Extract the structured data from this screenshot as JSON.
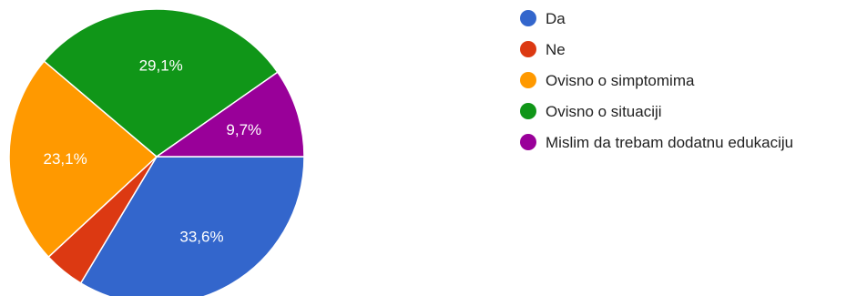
{
  "chart_data": {
    "type": "pie",
    "title": "",
    "legend_position": "right",
    "series": [
      {
        "name": "Da",
        "value": 33.6,
        "label": "33,6%",
        "color": "#3366cc"
      },
      {
        "name": "Ne",
        "value": 4.5,
        "label": "",
        "color": "#dc3912"
      },
      {
        "name": "Ovisno o simptomima",
        "value": 23.1,
        "label": "23,1%",
        "color": "#ff9900"
      },
      {
        "name": "Ovisno o situaciji",
        "value": 29.1,
        "label": "29,1%",
        "color": "#109618"
      },
      {
        "name": "Mislim da trebam dodatnu edukaciju",
        "value": 9.7,
        "label": "9,7%",
        "color": "#990099"
      }
    ]
  }
}
